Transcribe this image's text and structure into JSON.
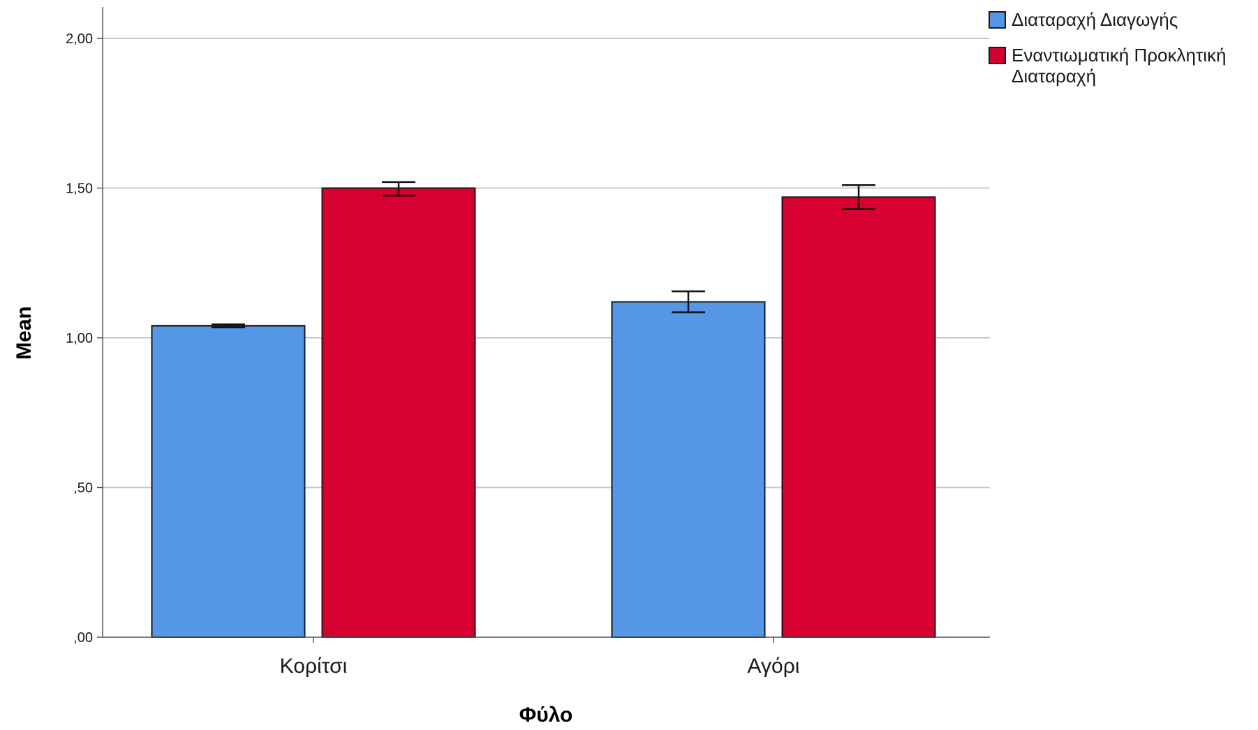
{
  "chart_data": {
    "type": "bar",
    "title": "",
    "xlabel": "Φύλο",
    "ylabel": "Mean",
    "categories": [
      "Κορίτσι",
      "Αγόρι"
    ],
    "series": [
      {
        "name": "Διαταραχή Διαγωγής",
        "color": "#5596e6",
        "values": [
          1.04,
          1.12
        ],
        "error_low": [
          1.035,
          1.085
        ],
        "error_high": [
          1.045,
          1.155
        ]
      },
      {
        "name": "Εναντιωματική Προκλητική Διαταραχή",
        "color": "#d60031",
        "values": [
          1.5,
          1.47
        ],
        "error_low": [
          1.475,
          1.43
        ],
        "error_high": [
          1.52,
          1.51
        ]
      }
    ],
    "ylim": [
      0,
      2.1
    ],
    "yticks": [
      0,
      0.5,
      1.0,
      1.5,
      2.0
    ],
    "ytick_labels": [
      ",00",
      ",50",
      "1,00",
      "1,50",
      "2,00"
    ],
    "grid": true,
    "legend_position": "top-right",
    "error_bars": true
  },
  "legend": {
    "items": [
      {
        "lines": [
          "Διαταραχή Διαγωγής"
        ],
        "color": "#5596e6"
      },
      {
        "lines": [
          "Εναντιωματική Προκλητική",
          "Διαταραχή"
        ],
        "color": "#d60031"
      }
    ]
  }
}
